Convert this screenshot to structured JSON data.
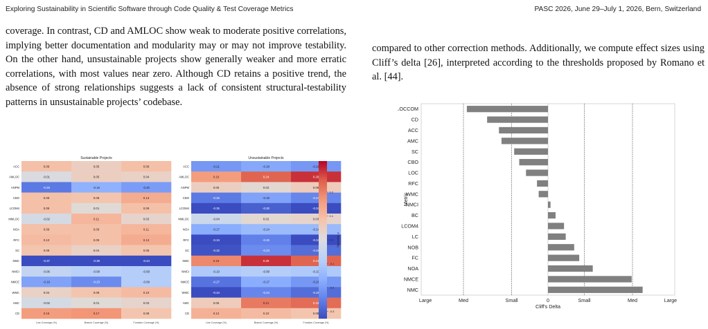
{
  "header": {
    "left": "Exploring Sustainability in Scientific Software through Code Quality & Test Coverage Metrics",
    "right": "PASC 2026, June 29–July 1, 2026, Bern, Switzerland"
  },
  "left_paragraph": "coverage. In contrast, CD and AMLOC show weak to moderate positive correlations, implying better documentation and modularity may or may not improve testability. On the other hand, unsustainable projects show generally weaker and more erratic correlations, with most values near zero. Although CD retains a positive trend, the absence of strong relationships suggests a lack of consistent structural-testability patterns in unsustainable projects’ codebase.",
  "right_paragraph": "compared to other correction methods. Additionally, we compute effect sizes using Cliff’s delta [26], interpreted according to the thresholds proposed by Romano et al. [44].",
  "chart_data": [
    {
      "type": "heatmap",
      "title": "Sustainable Projects",
      "rows": [
        "ACC",
        "AMLOC",
        "ANPM",
        "CBO",
        "LCOM4",
        "MMLOC",
        "NOA",
        "RFC",
        "SC",
        "NMC",
        "NMCI",
        "NMCE",
        "WMC",
        "AMC",
        "CD"
      ],
      "columns": [
        "Line Coverage (%)",
        "Branch Coverage (%)",
        "Function Coverage (%)"
      ],
      "values": [
        [
          0.09,
          0.05,
          0.09
        ],
        [
          -0.01,
          0.05,
          0.04
        ],
        [
          -0.26,
          -0.16,
          -0.2
        ],
        [
          0.09,
          0.08,
          0.13
        ],
        [
          0.09,
          0.01,
          0.09
        ],
        [
          -0.02,
          0.11,
          0.03
        ],
        [
          0.09,
          0.09,
          0.11
        ],
        [
          0.1,
          0.09,
          0.13
        ],
        [
          0.08,
          0.04,
          0.08
        ],
        [
          -0.37,
          -0.39,
          -0.44
        ],
        [
          -0.06,
          -0.08,
          -0.09
        ],
        [
          -0.19,
          -0.23,
          -0.09
        ],
        [
          0.04,
          0.08,
          0.1
        ],
        [
          -0.02,
          0.01,
          0.03
        ],
        [
          0.16,
          0.17,
          0.08
        ]
      ],
      "vmin": -0.33,
      "vmax": 0.33,
      "colormap": "coolwarm"
    },
    {
      "type": "heatmap",
      "title": "Unsustainable Projects",
      "rows": [
        "ACC",
        "AMLOC",
        "ANPM",
        "CBO",
        "LCOM4",
        "MMLOC",
        "NOA",
        "RFC",
        "SC",
        "NMC",
        "NMCI",
        "NMCE",
        "WMC",
        "AMC",
        "CD"
      ],
      "columns": [
        "Line Coverage (%)",
        "Branch Coverage (%)",
        "Function Coverage (%)"
      ],
      "values": [
        [
          -0.21,
          -0.18,
          -0.21
        ],
        [
          0.16,
          0.24,
          0.29
        ],
        [
          0.05,
          0.02,
          0.06
        ],
        [
          -0.26,
          -0.19,
          -0.24
        ],
        [
          -0.35,
          -0.3,
          -0.34
        ],
        [
          -0.04,
          0.02,
          0.03
        ],
        [
          -0.17,
          -0.14,
          -0.14
        ],
        [
          -0.34,
          -0.25,
          -0.34
        ],
        [
          -0.32,
          -0.23,
          -0.28
        ],
        [
          0.19,
          0.29,
          0.24
        ],
        [
          -0.1,
          -0.09,
          -0.1
        ],
        [
          -0.27,
          -0.17,
          -0.21
        ],
        [
          -0.34,
          -0.24,
          -0.28
        ],
        [
          0.06,
          0.21,
          0.23
        ],
        [
          0.12,
          0.1,
          0.08
        ]
      ],
      "vmin": -0.33,
      "vmax": 0.33,
      "colormap": "coolwarm",
      "colorbar": {
        "label": "Spearman ρ",
        "ticks": [
          0.2,
          0.1,
          0.0,
          -0.1,
          -0.2,
          -0.3
        ],
        "tick_labels": [
          "0.2",
          "0.1",
          "0.0",
          "-0.1",
          "-0.2",
          "-0.3"
        ]
      }
    },
    {
      "type": "bar",
      "orientation": "horizontal",
      "categories": [
        "LOCCOM",
        "CD",
        "ACC",
        "AMC",
        "SC",
        "CBO",
        "LOC",
        "RFC",
        "WMC",
        "NMCI",
        "BC",
        "LCOM4",
        "LC",
        "NOB",
        "FC",
        "NOA",
        "NMCE",
        "NMC"
      ],
      "values": [
        -0.96,
        -0.72,
        -0.58,
        -0.55,
        -0.4,
        -0.34,
        -0.26,
        -0.13,
        -0.11,
        0.03,
        0.09,
        0.19,
        0.21,
        0.31,
        0.37,
        0.53,
        0.99,
        1.12
      ],
      "xlabel": "Cliff's Delta",
      "ylabel": "Metric",
      "xlim": [
        -1.5,
        1.5
      ],
      "thresholds": [
        -1.0,
        -0.43,
        0.43,
        1.0
      ],
      "xtick_values": [
        -1.45,
        -1.0,
        -0.43,
        0,
        0.43,
        1.0,
        1.45
      ],
      "xtick_labels": [
        "Large",
        "Med",
        "Small",
        "0",
        "Small",
        "Med",
        "Large"
      ],
      "bar_color": "#808080"
    }
  ]
}
